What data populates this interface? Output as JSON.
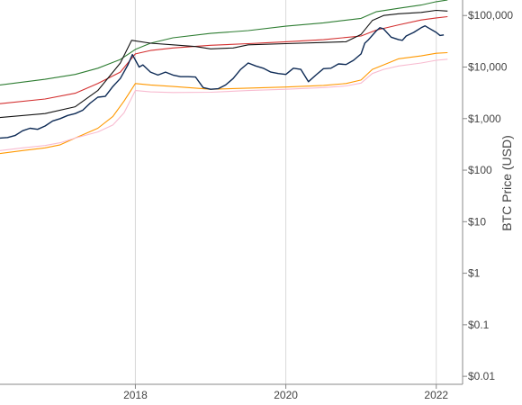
{
  "chart_data": {
    "type": "line",
    "title": "",
    "xlabel": "",
    "ylabel": "BTC Price (USD)",
    "y_scale": "log",
    "ylim": [
      0.007,
      200000
    ],
    "xlim": [
      2016.2,
      2022.35
    ],
    "grid": {
      "vertical": true,
      "horizontal": false
    },
    "legend": "none",
    "x_ticks": [
      {
        "value": 2018,
        "label": "2018"
      },
      {
        "value": 2020,
        "label": "2020"
      },
      {
        "value": 2022,
        "label": "2022"
      }
    ],
    "y_ticks": [
      {
        "value": 0.01,
        "label": "$0.01"
      },
      {
        "value": 0.1,
        "label": "$0.1"
      },
      {
        "value": 1,
        "label": "$1"
      },
      {
        "value": 10,
        "label": "$10"
      },
      {
        "value": 100,
        "label": "$100"
      },
      {
        "value": 1000,
        "label": "$1,000"
      },
      {
        "value": 10000,
        "label": "$10,000"
      },
      {
        "value": 100000,
        "label": "$100,000"
      }
    ],
    "series": [
      {
        "color": "#2e7d32",
        "x": [
          2016.2,
          2016.8,
          2017.2,
          2017.5,
          2017.8,
          2018.0,
          2018.2,
          2018.5,
          2019.0,
          2019.5,
          2020.0,
          2020.5,
          2021.0,
          2021.2,
          2021.5,
          2021.8,
          2022.0,
          2022.15
        ],
        "y": [
          4500,
          5800,
          7200,
          9500,
          14000,
          22000,
          29000,
          37000,
          45000,
          51000,
          62000,
          72000,
          88000,
          118000,
          138000,
          160000,
          185000,
          200000
        ]
      },
      {
        "color": "#d32f2f",
        "x": [
          2016.2,
          2016.8,
          2017.2,
          2017.5,
          2017.8,
          2018.0,
          2018.2,
          2018.5,
          2019.0,
          2019.5,
          2020.0,
          2020.5,
          2021.0,
          2021.2,
          2021.5,
          2021.8,
          2022.0,
          2022.15
        ],
        "y": [
          1950,
          2400,
          3100,
          4800,
          8000,
          18000,
          21000,
          23500,
          26500,
          28500,
          31000,
          34000,
          40000,
          52000,
          66000,
          82000,
          90000,
          95000
        ]
      },
      {
        "color": "#111111",
        "x": [
          2016.2,
          2016.8,
          2017.2,
          2017.5,
          2017.8,
          2017.95,
          2018.2,
          2018.5,
          2018.8,
          2019.0,
          2019.3,
          2019.5,
          2020.0,
          2020.5,
          2020.8,
          2021.0,
          2021.15,
          2021.3,
          2021.5,
          2021.8,
          2022.0,
          2022.15
        ],
        "y": [
          1050,
          1250,
          1700,
          3500,
          12000,
          33000,
          29000,
          27000,
          25000,
          22500,
          23500,
          27000,
          28500,
          30000,
          31000,
          43000,
          80000,
          100000,
          108000,
          115000,
          126000,
          122000
        ]
      },
      {
        "color": "#ff9800",
        "x": [
          2016.2,
          2016.5,
          2016.8,
          2017.0,
          2017.2,
          2017.5,
          2017.7,
          2017.85,
          2018.0,
          2018.2,
          2018.5,
          2019.0,
          2019.5,
          2020.0,
          2020.5,
          2020.8,
          2021.0,
          2021.15,
          2021.3,
          2021.5,
          2021.8,
          2022.0,
          2022.15
        ],
        "y": [
          210,
          240,
          270,
          310,
          420,
          650,
          1100,
          2200,
          4800,
          4500,
          4200,
          3700,
          3900,
          4100,
          4400,
          4800,
          5600,
          9000,
          11000,
          14500,
          16500,
          18500,
          19000
        ]
      },
      {
        "color": "#f8bbd0",
        "x": [
          2016.2,
          2016.5,
          2016.8,
          2017.0,
          2017.2,
          2017.5,
          2017.7,
          2017.85,
          2018.0,
          2018.2,
          2018.5,
          2019.0,
          2019.5,
          2020.0,
          2020.5,
          2020.8,
          2021.0,
          2021.15,
          2021.3,
          2021.5,
          2021.8,
          2022.0,
          2022.15
        ],
        "y": [
          240,
          270,
          300,
          340,
          420,
          550,
          750,
          1300,
          3500,
          3300,
          3200,
          3250,
          3500,
          3700,
          4000,
          4300,
          4900,
          7500,
          9000,
          10500,
          12000,
          13500,
          14200
        ]
      },
      {
        "color": "#0d2a55",
        "x": [
          2016.2,
          2016.3,
          2016.4,
          2016.5,
          2016.6,
          2016.7,
          2016.8,
          2016.9,
          2017.0,
          2017.1,
          2017.2,
          2017.3,
          2017.4,
          2017.5,
          2017.6,
          2017.7,
          2017.8,
          2017.9,
          2017.96,
          2018.05,
          2018.1,
          2018.2,
          2018.3,
          2018.4,
          2018.5,
          2018.6,
          2018.7,
          2018.8,
          2018.9,
          2019.0,
          2019.1,
          2019.2,
          2019.3,
          2019.4,
          2019.5,
          2019.6,
          2019.7,
          2019.8,
          2019.9,
          2020.0,
          2020.1,
          2020.2,
          2020.3,
          2020.4,
          2020.5,
          2020.6,
          2020.7,
          2020.8,
          2020.9,
          2021.0,
          2021.05,
          2021.1,
          2021.2,
          2021.25,
          2021.3,
          2021.4,
          2021.5,
          2021.55,
          2021.6,
          2021.7,
          2021.8,
          2021.85,
          2021.9,
          2022.0,
          2022.05,
          2022.1
        ],
        "y": [
          420,
          430,
          470,
          580,
          650,
          620,
          720,
          900,
          1000,
          1150,
          1250,
          1450,
          2000,
          2600,
          2700,
          4200,
          6000,
          11000,
          17500,
          10000,
          11000,
          8000,
          7000,
          8000,
          7000,
          6500,
          6500,
          6400,
          4000,
          3700,
          3800,
          4500,
          6000,
          9000,
          12000,
          10500,
          9500,
          8000,
          7500,
          7200,
          9500,
          9000,
          5200,
          7000,
          9300,
          9500,
          11500,
          11200,
          13500,
          18000,
          29000,
          34000,
          50000,
          58000,
          55000,
          38000,
          34000,
          33000,
          40000,
          47000,
          58000,
          63000,
          57000,
          47000,
          41000,
          42000
        ]
      }
    ]
  }
}
